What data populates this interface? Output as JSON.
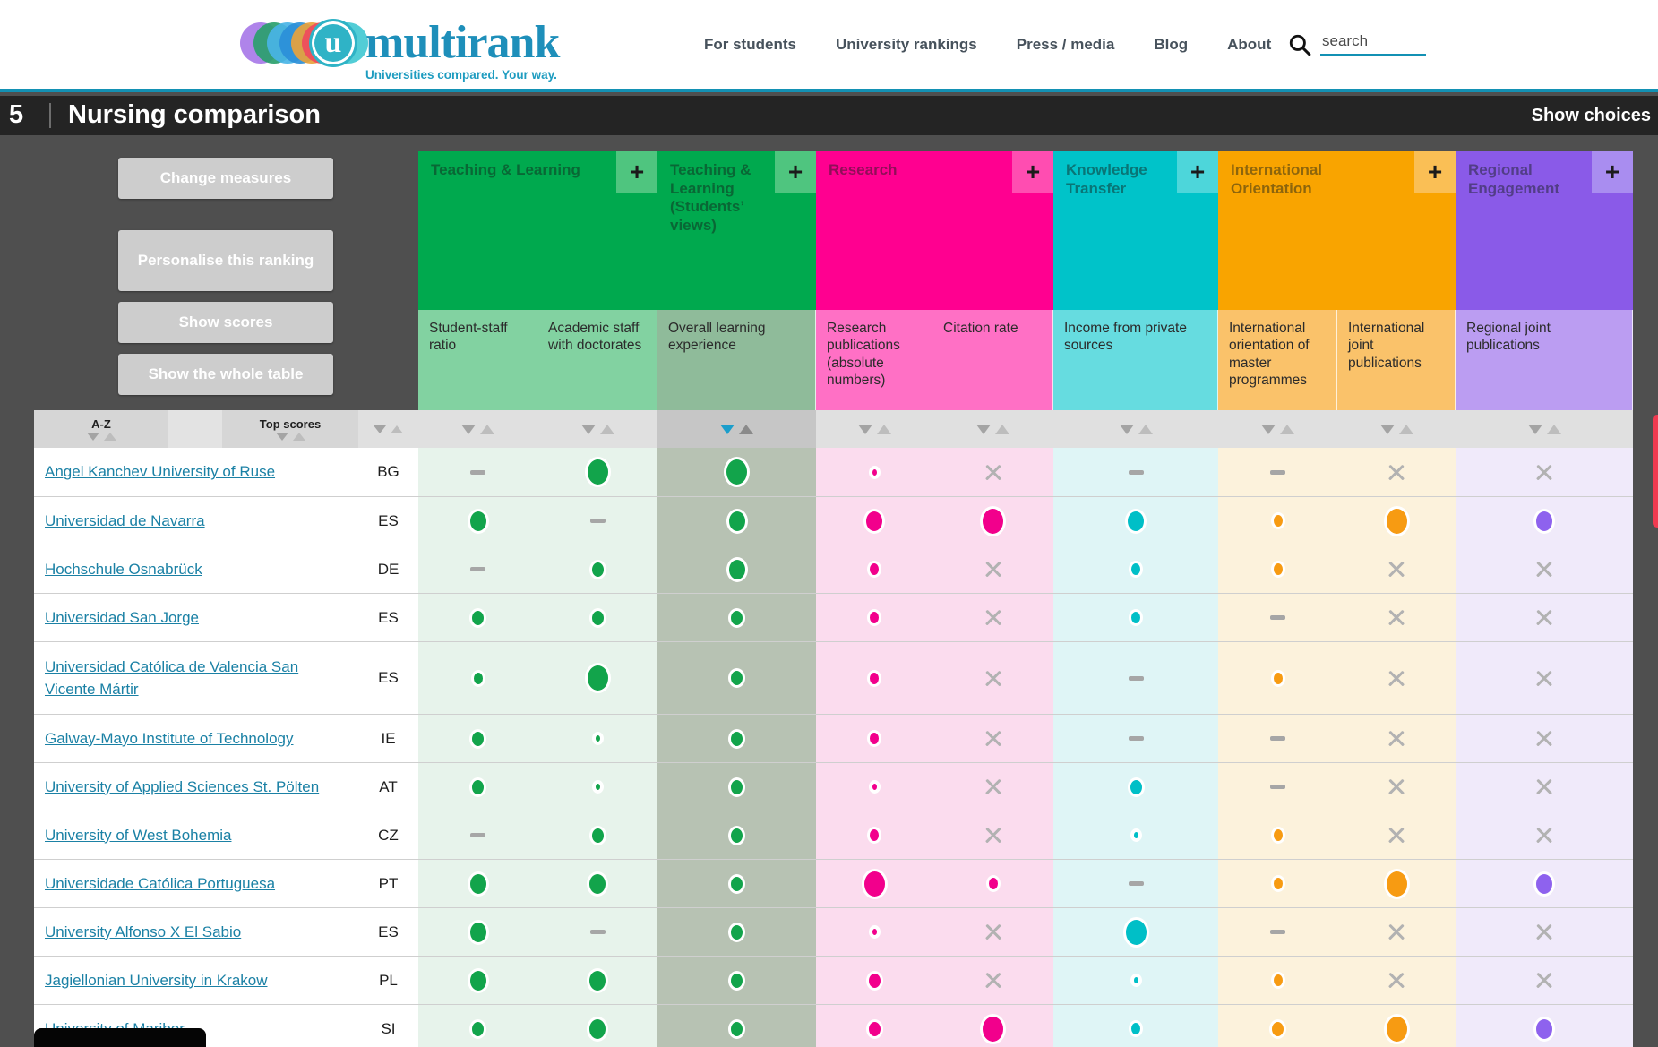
{
  "header": {
    "logo": {
      "badge_letter": "u",
      "brand": "multirank",
      "tagline": "Universities compared. Your way."
    },
    "nav": [
      {
        "label": "For students"
      },
      {
        "label": "University rankings"
      },
      {
        "label": "Press / media"
      },
      {
        "label": "Blog"
      },
      {
        "label": "About"
      }
    ],
    "search_placeholder": "search"
  },
  "title_bar": {
    "number": "5",
    "title": "Nursing comparison",
    "action": "Show choices"
  },
  "controls": [
    {
      "label": "Change measures"
    },
    {
      "label": "Personalise this ranking"
    },
    {
      "label": "Show scores"
    },
    {
      "label": "Show the whole table"
    }
  ],
  "sort_bar": {
    "az_label": "A-Z",
    "top_scores_label": "Top scores"
  },
  "categories": [
    {
      "label": "Teaching & Learning",
      "plus_label": "+",
      "color": "#00a94e",
      "plus_color": "#4fc57f",
      "sub_bg": "#82d2a1",
      "body_bg": "#e7f3eb",
      "sorted": false,
      "subcolumns": [
        {
          "label": "Student-staff ratio",
          "dot_color": "#12a44b"
        },
        {
          "label": "Academic staff with doctorates",
          "dot_color": "#12a44b"
        }
      ]
    },
    {
      "label": "Teaching & Learning (Students’ views)",
      "plus_label": "+",
      "color": "#00a94e",
      "plus_color": "#4fc57f",
      "sub_bg": "#8fbb9a",
      "body_bg": "#b7c2b3",
      "sorted": true,
      "subcolumns": [
        {
          "label": "Overall learning experience",
          "dot_color": "#12a44b"
        }
      ]
    },
    {
      "label": "Research",
      "plus_label": "+",
      "color": "#ff0090",
      "plus_color": "#ff4db1",
      "sub_bg": "#ff70c5",
      "body_bg": "#fbdcee",
      "sorted": false,
      "subcolumns": [
        {
          "label": "Research publications (absolute numbers)",
          "dot_color": "#f2008c"
        },
        {
          "label": "Citation rate",
          "dot_color": "#f2008c"
        }
      ]
    },
    {
      "label": "Knowledge Transfer",
      "plus_label": "+",
      "color": "#00c3c9",
      "plus_color": "#4dd6da",
      "sub_bg": "#66dce0",
      "body_bg": "#dff5f6",
      "sorted": false,
      "subcolumns": [
        {
          "label": "Income from private sources",
          "dot_color": "#00bfc7"
        }
      ]
    },
    {
      "label": "International Orientation",
      "plus_label": "+",
      "color": "#f9a400",
      "plus_color": "#fabf55",
      "sub_bg": "#fac26a",
      "body_bg": "#fcf2dc",
      "sorted": false,
      "subcolumns": [
        {
          "label": "International orientation of master programmes",
          "dot_color": "#f79b12"
        },
        {
          "label": "International joint publications",
          "dot_color": "#f79b12"
        }
      ]
    },
    {
      "label": "Regional Engagement",
      "plus_label": "+",
      "color": "#8a5ae8",
      "plus_color": "#a98df0",
      "sub_bg": "#bb9df2",
      "body_bg": "#f0eafa",
      "sorted": false,
      "subcolumns": [
        {
          "label": "Regional joint publications",
          "dot_color": "#8e62ee"
        }
      ]
    }
  ],
  "rows": [
    {
      "university": "Angel Kanchev University of Ruse",
      "country": "BG",
      "cells": [
        "dash",
        "dot-xl",
        "dot-xl",
        "dot-xs",
        "x",
        "dash",
        "dash",
        "x",
        "x"
      ]
    },
    {
      "university": "Universidad de Navarra",
      "country": "ES",
      "cells": [
        "dot-l",
        "dash",
        "dot-l",
        "dot-l",
        "dot-xl",
        "dot-l",
        "dot-s",
        "dot-xl",
        "dot-l"
      ]
    },
    {
      "university": "Hochschule Osnabrück",
      "country": "DE",
      "cells": [
        "dash",
        "dot-m",
        "dot-l",
        "dot-s",
        "x",
        "dot-s",
        "dot-s",
        "x",
        "x"
      ]
    },
    {
      "university": "Universidad San Jorge",
      "country": "ES",
      "cells": [
        "dot-m",
        "dot-m",
        "dot-m",
        "dot-s",
        "x",
        "dot-s",
        "dash",
        "x",
        "x"
      ]
    },
    {
      "university": "Universidad Católica de Valencia San Vicente Mártir",
      "country": "ES",
      "cells": [
        "dot-s",
        "dot-xl",
        "dot-m",
        "dot-s",
        "x",
        "dash",
        "dot-s",
        "x",
        "x"
      ]
    },
    {
      "university": "Galway-Mayo Institute of Technology",
      "country": "IE",
      "cells": [
        "dot-m",
        "dot-xs",
        "dot-m",
        "dot-s",
        "x",
        "dash",
        "dash",
        "x",
        "x"
      ]
    },
    {
      "university": "University of Applied Sciences St. Pölten",
      "country": "AT",
      "cells": [
        "dot-m",
        "dot-xs",
        "dot-m",
        "dot-xs",
        "x",
        "dot-m",
        "dash",
        "x",
        "x"
      ]
    },
    {
      "university": "University of West Bohemia",
      "country": "CZ",
      "cells": [
        "dash",
        "dot-m",
        "dot-m",
        "dot-s",
        "x",
        "dot-xs",
        "dot-s",
        "x",
        "x"
      ]
    },
    {
      "university": "Universidade Católica Portuguesa",
      "country": "PT",
      "cells": [
        "dot-l",
        "dot-l",
        "dot-m",
        "dot-xl",
        "dot-s",
        "dash",
        "dot-s",
        "dot-xl",
        "dot-l"
      ]
    },
    {
      "university": "University Alfonso X El Sabio",
      "country": "ES",
      "cells": [
        "dot-l",
        "dash",
        "dot-m",
        "dot-xs",
        "x",
        "dot-xl",
        "dash",
        "x",
        "x"
      ]
    },
    {
      "university": "Jagiellonian University in Krakow",
      "country": "PL",
      "cells": [
        "dot-l",
        "dot-l",
        "dot-m",
        "dot-m",
        "x",
        "dot-xs",
        "dot-s",
        "x",
        "x"
      ]
    },
    {
      "university": "University of Maribor",
      "country": "SI",
      "cells": [
        "dot-m",
        "dot-l",
        "dot-m",
        "dot-m",
        "dot-xl",
        "dot-s",
        "dot-m",
        "dot-xl",
        "dot-l"
      ]
    }
  ]
}
